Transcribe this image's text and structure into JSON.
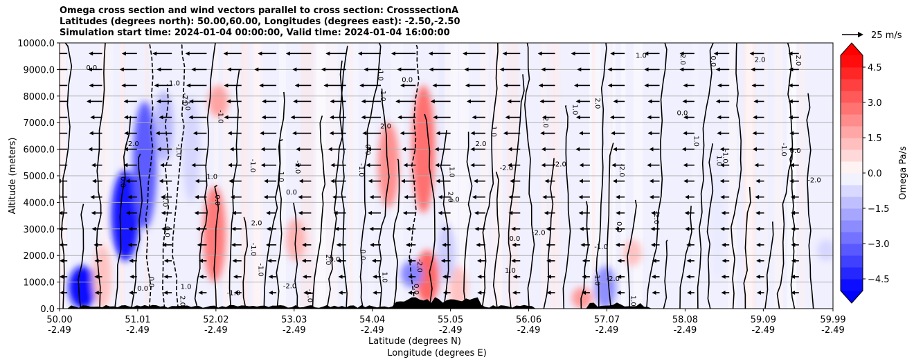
{
  "chart_data": {
    "type": "heatmap",
    "title_lines": [
      "Omega cross section and wind vectors parallel to cross section: CrosssectionA",
      "Latitudes (degrees north): 50.00,60.00, Longitudes (degrees east): -2.50,-2.50",
      "Simulation start time: 2024-01-04 00:00:00, Valid time: 2024-01-04 16:00:00"
    ],
    "ylabel": "Altitude (meters)",
    "xlabel_lat": "Latitude (degrees N)",
    "xlabel_lon": "Longitude (degrees E)",
    "ylim": [
      0,
      10000
    ],
    "yticks": [
      "0.0",
      "1000.0",
      "2000.0",
      "3000.0",
      "4000.0",
      "5000.0",
      "6000.0",
      "7000.0",
      "8000.0",
      "9000.0",
      "10000.0"
    ],
    "ytick_values": [
      0,
      1000,
      2000,
      3000,
      4000,
      5000,
      6000,
      7000,
      8000,
      9000,
      10000
    ],
    "xlim": [
      50.0,
      59.99
    ],
    "xticks_lat": [
      "50.00",
      "51.01",
      "52.02",
      "53.03",
      "54.04",
      "55.05",
      "56.06",
      "57.07",
      "58.08",
      "59.09",
      "59.99"
    ],
    "xtick_values": [
      50.0,
      51.01,
      52.02,
      53.03,
      54.04,
      55.05,
      56.06,
      57.07,
      58.08,
      59.09,
      59.99
    ],
    "xticks_lon": [
      "-2.49",
      "-2.49",
      "-2.49",
      "-2.49",
      "-2.49",
      "-2.49",
      "-2.49",
      "-2.49",
      "-2.49",
      "-2.49",
      "-2.49"
    ],
    "grid": "horizontal",
    "colorbar": {
      "label": "Omega Pa/s",
      "range": [
        -5.0,
        5.0
      ],
      "ticks": [
        "4.5",
        "3.0",
        "1.5",
        "0.0",
        "−1.5",
        "−3.0",
        "−4.5"
      ],
      "tick_values": [
        4.5,
        3.0,
        1.5,
        0.0,
        -1.5,
        -3.0,
        -4.5
      ],
      "colormap": "bwr",
      "extend": "both"
    },
    "quiver_key": "25 m/s",
    "contour_labels": [
      "0.0",
      "1.0",
      "2.0",
      "-1.0",
      "-2.0"
    ],
    "omega_features": [
      {
        "lat": 50.3,
        "z0": 0,
        "z1": 1600,
        "omega": -4.8
      },
      {
        "lat": 50.85,
        "z0": 1800,
        "z1": 5200,
        "omega": -4.6
      },
      {
        "lat": 51.1,
        "z0": 3000,
        "z1": 7800,
        "omega": -3.2
      },
      {
        "lat": 51.35,
        "z0": 5500,
        "z1": 8200,
        "omega": -1.4
      },
      {
        "lat": 51.7,
        "z0": 4000,
        "z1": 8000,
        "omega": -0.8
      },
      {
        "lat": 50.55,
        "z0": 0,
        "z1": 2400,
        "omega": 1.2
      },
      {
        "lat": 52.0,
        "z0": 1000,
        "z1": 4600,
        "omega": 2.6
      },
      {
        "lat": 52.05,
        "z0": 7200,
        "z1": 8400,
        "omega": 1.8
      },
      {
        "lat": 53.05,
        "z0": 1800,
        "z1": 3400,
        "omega": 1.5
      },
      {
        "lat": 54.25,
        "z0": 3800,
        "z1": 7000,
        "omega": 2.2
      },
      {
        "lat": 54.7,
        "z0": 3600,
        "z1": 8400,
        "omega": 2.8
      },
      {
        "lat": 54.75,
        "z0": 200,
        "z1": 2200,
        "omega": 3.0
      },
      {
        "lat": 54.55,
        "z0": 800,
        "z1": 1800,
        "omega": -2.4
      },
      {
        "lat": 55.15,
        "z0": 0,
        "z1": 1600,
        "omega": 1.2
      },
      {
        "lat": 55.0,
        "z0": 1000,
        "z1": 3200,
        "omega": -1.0
      },
      {
        "lat": 56.75,
        "z0": 0,
        "z1": 800,
        "omega": 2.0
      },
      {
        "lat": 57.05,
        "z0": 0,
        "z1": 1600,
        "omega": -2.2
      },
      {
        "lat": 57.4,
        "z0": 1600,
        "z1": 2600,
        "omega": 1.2
      },
      {
        "lat": 58.5,
        "z0": 1000,
        "z1": 6000,
        "omega": -0.4
      },
      {
        "lat": 59.9,
        "z0": 1800,
        "z1": 2600,
        "omega": -0.8
      }
    ]
  }
}
